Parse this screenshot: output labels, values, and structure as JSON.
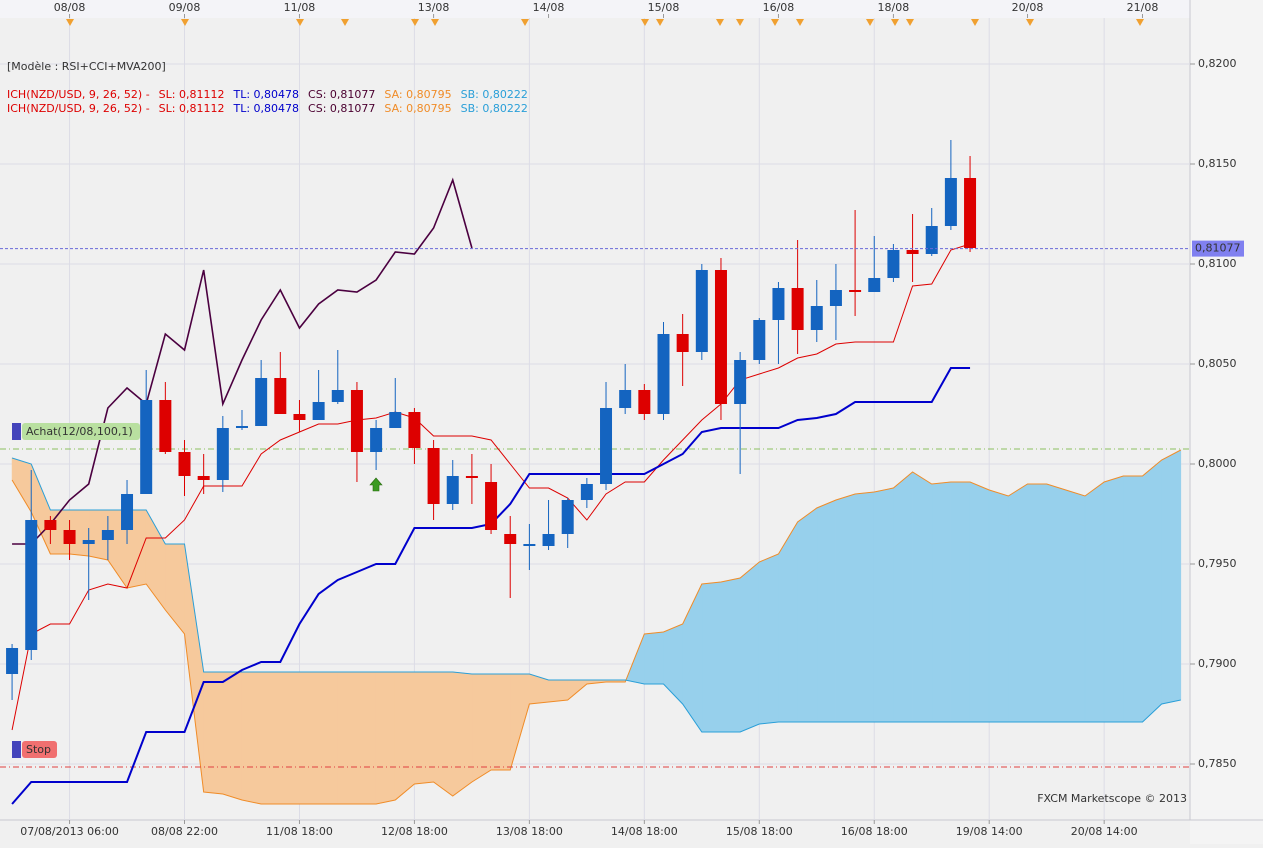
{
  "chart_data": {
    "type": "candlestick",
    "header": "[Modèle : RSI+CCI+MVA200]",
    "legend_lines": [
      {
        "indicator": "ICH(NZD/USD, 9, 26, 52) -",
        "items": [
          {
            "text": "SL: 0,81112",
            "color": "#dd0000"
          },
          {
            "text": "TL: 0,80478",
            "color": "#0000cc"
          },
          {
            "text": "CS: 0,81077",
            "color": "#4b0030"
          },
          {
            "text": "SA: 0,80795",
            "color": "#f08c28"
          },
          {
            "text": "SB: 0,80222",
            "color": "#2a9fd8"
          }
        ]
      },
      {
        "indicator": "ICH(NZD/USD, 9, 26, 52) -",
        "items": [
          {
            "text": "SL: 0,81112",
            "color": "#dd0000"
          },
          {
            "text": "TL: 0,80478",
            "color": "#0000cc"
          },
          {
            "text": "CS: 0,81077",
            "color": "#4b0030"
          },
          {
            "text": "SA: 0,80795",
            "color": "#f08c28"
          },
          {
            "text": "SB: 0,80222",
            "color": "#2a9fd8"
          }
        ]
      }
    ],
    "watermark": "FXCM Marketscope © 2013",
    "open": [
      0.7895,
      0.7907,
      0.7972,
      0.7967,
      0.796,
      0.7962,
      0.7967,
      0.7985,
      0.8032,
      0.8006,
      0.7994,
      0.7992,
      0.8018,
      0.8019,
      0.8043,
      0.8025,
      0.8022,
      0.8031,
      0.8037,
      0.8006,
      0.8018,
      0.8026,
      0.8008,
      0.798,
      0.7994,
      0.7991,
      0.7965,
      0.7959,
      0.7959,
      0.7965,
      0.7982,
      0.799,
      0.8028,
      0.8037,
      0.8025,
      0.8065,
      0.8056,
      0.8097,
      0.803,
      0.8052,
      0.8072,
      0.8088,
      0.8067,
      0.8079,
      0.8087,
      0.8086,
      0.8093,
      0.8107,
      0.8105,
      0.8119,
      0.8143
    ],
    "high": [
      0.791,
      0.7997,
      0.7974,
      0.7972,
      0.7968,
      0.7974,
      0.7992,
      0.8047,
      0.8041,
      0.8012,
      0.8005,
      0.8024,
      0.8027,
      0.8052,
      0.8056,
      0.8032,
      0.8047,
      0.8057,
      0.8041,
      0.8022,
      0.8043,
      0.8028,
      0.8012,
      0.8002,
      0.8005,
      0.8,
      0.7974,
      0.797,
      0.7982,
      0.7983,
      0.7993,
      0.8041,
      0.805,
      0.804,
      0.8071,
      0.8075,
      0.81,
      0.8103,
      0.8056,
      0.8073,
      0.8091,
      0.8112,
      0.8092,
      0.81,
      0.8127,
      0.8114,
      0.811,
      0.8125,
      0.8128,
      0.8162,
      0.8154
    ],
    "low": [
      0.7882,
      0.7902,
      0.796,
      0.7952,
      0.7932,
      0.7952,
      0.796,
      0.7985,
      0.8005,
      0.7984,
      0.7985,
      0.7986,
      0.8017,
      0.8019,
      0.8025,
      0.8016,
      0.8022,
      0.803,
      0.7991,
      0.7997,
      0.8018,
      0.8,
      0.7972,
      0.7977,
      0.798,
      0.7965,
      0.7933,
      0.7947,
      0.7957,
      0.7958,
      0.7978,
      0.7987,
      0.8025,
      0.8022,
      0.8022,
      0.8039,
      0.8052,
      0.8022,
      0.7995,
      0.805,
      0.805,
      0.8055,
      0.8061,
      0.8062,
      0.8074,
      0.8086,
      0.8091,
      0.8091,
      0.8104,
      0.8117,
      0.8106
    ],
    "close": [
      0.7908,
      0.7972,
      0.7967,
      0.796,
      0.7962,
      0.7967,
      0.7985,
      0.8032,
      0.8006,
      0.7994,
      0.7992,
      0.8018,
      0.8019,
      0.8043,
      0.8025,
      0.8022,
      0.8031,
      0.8037,
      0.8006,
      0.8018,
      0.8026,
      0.8008,
      0.798,
      0.7994,
      0.7993,
      0.7967,
      0.796,
      0.796,
      0.7965,
      0.7982,
      0.799,
      0.8028,
      0.8037,
      0.8025,
      0.8065,
      0.8056,
      0.8097,
      0.803,
      0.8052,
      0.8072,
      0.8088,
      0.8067,
      0.8079,
      0.8087,
      0.8086,
      0.8093,
      0.8107,
      0.8105,
      0.8119,
      0.8143,
      0.8108
    ],
    "up_color": "#1464c0",
    "down_color": "#dd0000",
    "tenkan": {
      "color": "#dd0000",
      "values": [
        0.7867,
        0.7915,
        0.792,
        0.792,
        0.7937,
        0.794,
        0.7938,
        0.7963,
        0.7963,
        0.7972,
        0.7989,
        0.7989,
        0.7989,
        0.8005,
        0.8012,
        0.8016,
        0.802,
        0.802,
        0.8022,
        0.8023,
        0.8026,
        0.8023,
        0.8014,
        0.8014,
        0.8014,
        0.8012,
        0.8,
        0.7988,
        0.7988,
        0.7983,
        0.7972,
        0.7985,
        0.7991,
        0.7991,
        0.8002,
        0.8012,
        0.8022,
        0.803,
        0.8042,
        0.8045,
        0.8048,
        0.8053,
        0.8055,
        0.806,
        0.8061,
        0.8061,
        0.8061,
        0.8089,
        0.809,
        0.8107,
        0.811
      ]
    },
    "kijun": {
      "color": "#0000cc",
      "values": [
        0.783,
        0.7841,
        0.7841,
        0.7841,
        0.7841,
        0.7841,
        0.7841,
        0.7866,
        0.7866,
        0.7866,
        0.7891,
        0.7891,
        0.7897,
        0.7901,
        0.7901,
        0.792,
        0.7935,
        0.7942,
        0.7946,
        0.795,
        0.795,
        0.7968,
        0.7968,
        0.7968,
        0.7968,
        0.797,
        0.798,
        0.7995,
        0.7995,
        0.7995,
        0.7995,
        0.7995,
        0.7995,
        0.7995,
        0.8,
        0.8005,
        0.8016,
        0.8018,
        0.8018,
        0.8018,
        0.8018,
        0.8022,
        0.8023,
        0.8025,
        0.8031,
        0.8031,
        0.8031,
        0.8031,
        0.8031,
        0.8048,
        0.8048
      ]
    },
    "chikou": {
      "color": "#4b0040",
      "values": [
        0.796,
        0.796,
        0.797,
        0.7982,
        0.799,
        0.8028,
        0.8038,
        0.803,
        0.8065,
        0.8057,
        0.8097,
        0.803,
        0.8052,
        0.8072,
        0.8087,
        0.8068,
        0.808,
        0.8087,
        0.8086,
        0.8092,
        0.8106,
        0.8105,
        0.8118,
        0.8142,
        0.8108
      ]
    },
    "senkou_a": {
      "color": "#f08c28",
      "fill": "#f6c99c",
      "values": [
        0.7992,
        0.7976,
        0.7955,
        0.7955,
        0.7954,
        0.7952,
        0.7938,
        0.794,
        0.7927,
        0.7915,
        0.7836,
        0.7835,
        0.7832,
        0.783,
        0.783,
        0.783,
        0.783,
        0.783,
        0.783,
        0.783,
        0.7832,
        0.784,
        0.7841,
        0.7834,
        0.7841,
        0.7847,
        0.7847,
        0.788,
        0.7881,
        0.7882,
        0.789,
        0.7891,
        0.7891,
        0.7915,
        0.7916,
        0.792,
        0.794,
        0.7941,
        0.7943,
        0.7951,
        0.7955,
        0.7971,
        0.7978,
        0.7982,
        0.7985,
        0.7986,
        0.7988,
        0.7996,
        0.799,
        0.7991,
        0.7991,
        0.7987,
        0.7984,
        0.799,
        0.799,
        0.7987,
        0.7984,
        0.7991,
        0.7994,
        0.7994,
        0.8002,
        0.8007
      ]
    },
    "senkou_b": {
      "color": "#2a9fd8",
      "fill": "#97d0ec",
      "values": [
        0.8003,
        0.8,
        0.7977,
        0.7977,
        0.7977,
        0.7977,
        0.7977,
        0.7977,
        0.796,
        0.796,
        0.7896,
        0.7896,
        0.7896,
        0.7896,
        0.7896,
        0.7896,
        0.7896,
        0.7896,
        0.7896,
        0.7896,
        0.7896,
        0.7896,
        0.7896,
        0.7896,
        0.7895,
        0.7895,
        0.7895,
        0.7895,
        0.7892,
        0.7892,
        0.7892,
        0.7892,
        0.7892,
        0.789,
        0.789,
        0.788,
        0.7866,
        0.7866,
        0.7866,
        0.787,
        0.7871,
        0.7871,
        0.7871,
        0.7871,
        0.7871,
        0.7871,
        0.7871,
        0.7871,
        0.7871,
        0.7871,
        0.7871,
        0.7871,
        0.7871,
        0.7871,
        0.7871,
        0.7871,
        0.7871,
        0.7871,
        0.7871,
        0.7871,
        0.788,
        0.7882
      ]
    },
    "xlim": [
      -0.63,
      61.48
    ],
    "ylim": [
      0.7822,
      0.8217
    ],
    "yticks": [
      {
        "value": 0.785,
        "label": "0,7850"
      },
      {
        "value": 0.79,
        "label": "0,7900"
      },
      {
        "value": 0.795,
        "label": "0,7950"
      },
      {
        "value": 0.8,
        "label": "0,8000"
      },
      {
        "value": 0.805,
        "label": "0,8050"
      },
      {
        "value": 0.81,
        "label": "0,8100"
      },
      {
        "value": 0.815,
        "label": "0,8150"
      },
      {
        "value": 0.82,
        "label": "0,8200"
      }
    ],
    "xticks": [
      {
        "value": 3,
        "label": "07/08/2013 06:00"
      },
      {
        "value": 9,
        "label": "08/08 22:00"
      },
      {
        "value": 15,
        "label": "11/08 18:00"
      },
      {
        "value": 21,
        "label": "12/08 18:00"
      },
      {
        "value": 27,
        "label": "13/08 18:00"
      },
      {
        "value": 33,
        "label": "14/08 18:00"
      },
      {
        "value": 39,
        "label": "15/08 18:00"
      },
      {
        "value": 45,
        "label": "16/08 18:00"
      },
      {
        "value": 51,
        "label": "19/08 14:00"
      },
      {
        "value": 57,
        "label": "20/08 14:00"
      }
    ],
    "top_xticks": [
      {
        "value": 3,
        "label": "08/08"
      },
      {
        "value": 9,
        "label": "09/08"
      },
      {
        "value": 15,
        "label": "11/08"
      },
      {
        "value": 22,
        "label": "13/08"
      },
      {
        "value": 28,
        "label": "14/08"
      },
      {
        "value": 34,
        "label": "15/08"
      },
      {
        "value": 40,
        "label": "16/08"
      },
      {
        "value": 46,
        "label": "18/08"
      },
      {
        "value": 53,
        "label": "20/08"
      },
      {
        "value": 59,
        "label": "21/08"
      }
    ],
    "current_price": {
      "value": 0.81077,
      "label": "0,81077"
    },
    "orders": [
      {
        "label": "Achat(12/08,100,1)",
        "value": 0.80075,
        "color": "#b9e0a0",
        "line_color": "#8cbf60"
      },
      {
        "label": "Stop",
        "value": 0.78485,
        "color": "#f07070",
        "line_color": "#e04040"
      }
    ],
    "grid": true
  }
}
